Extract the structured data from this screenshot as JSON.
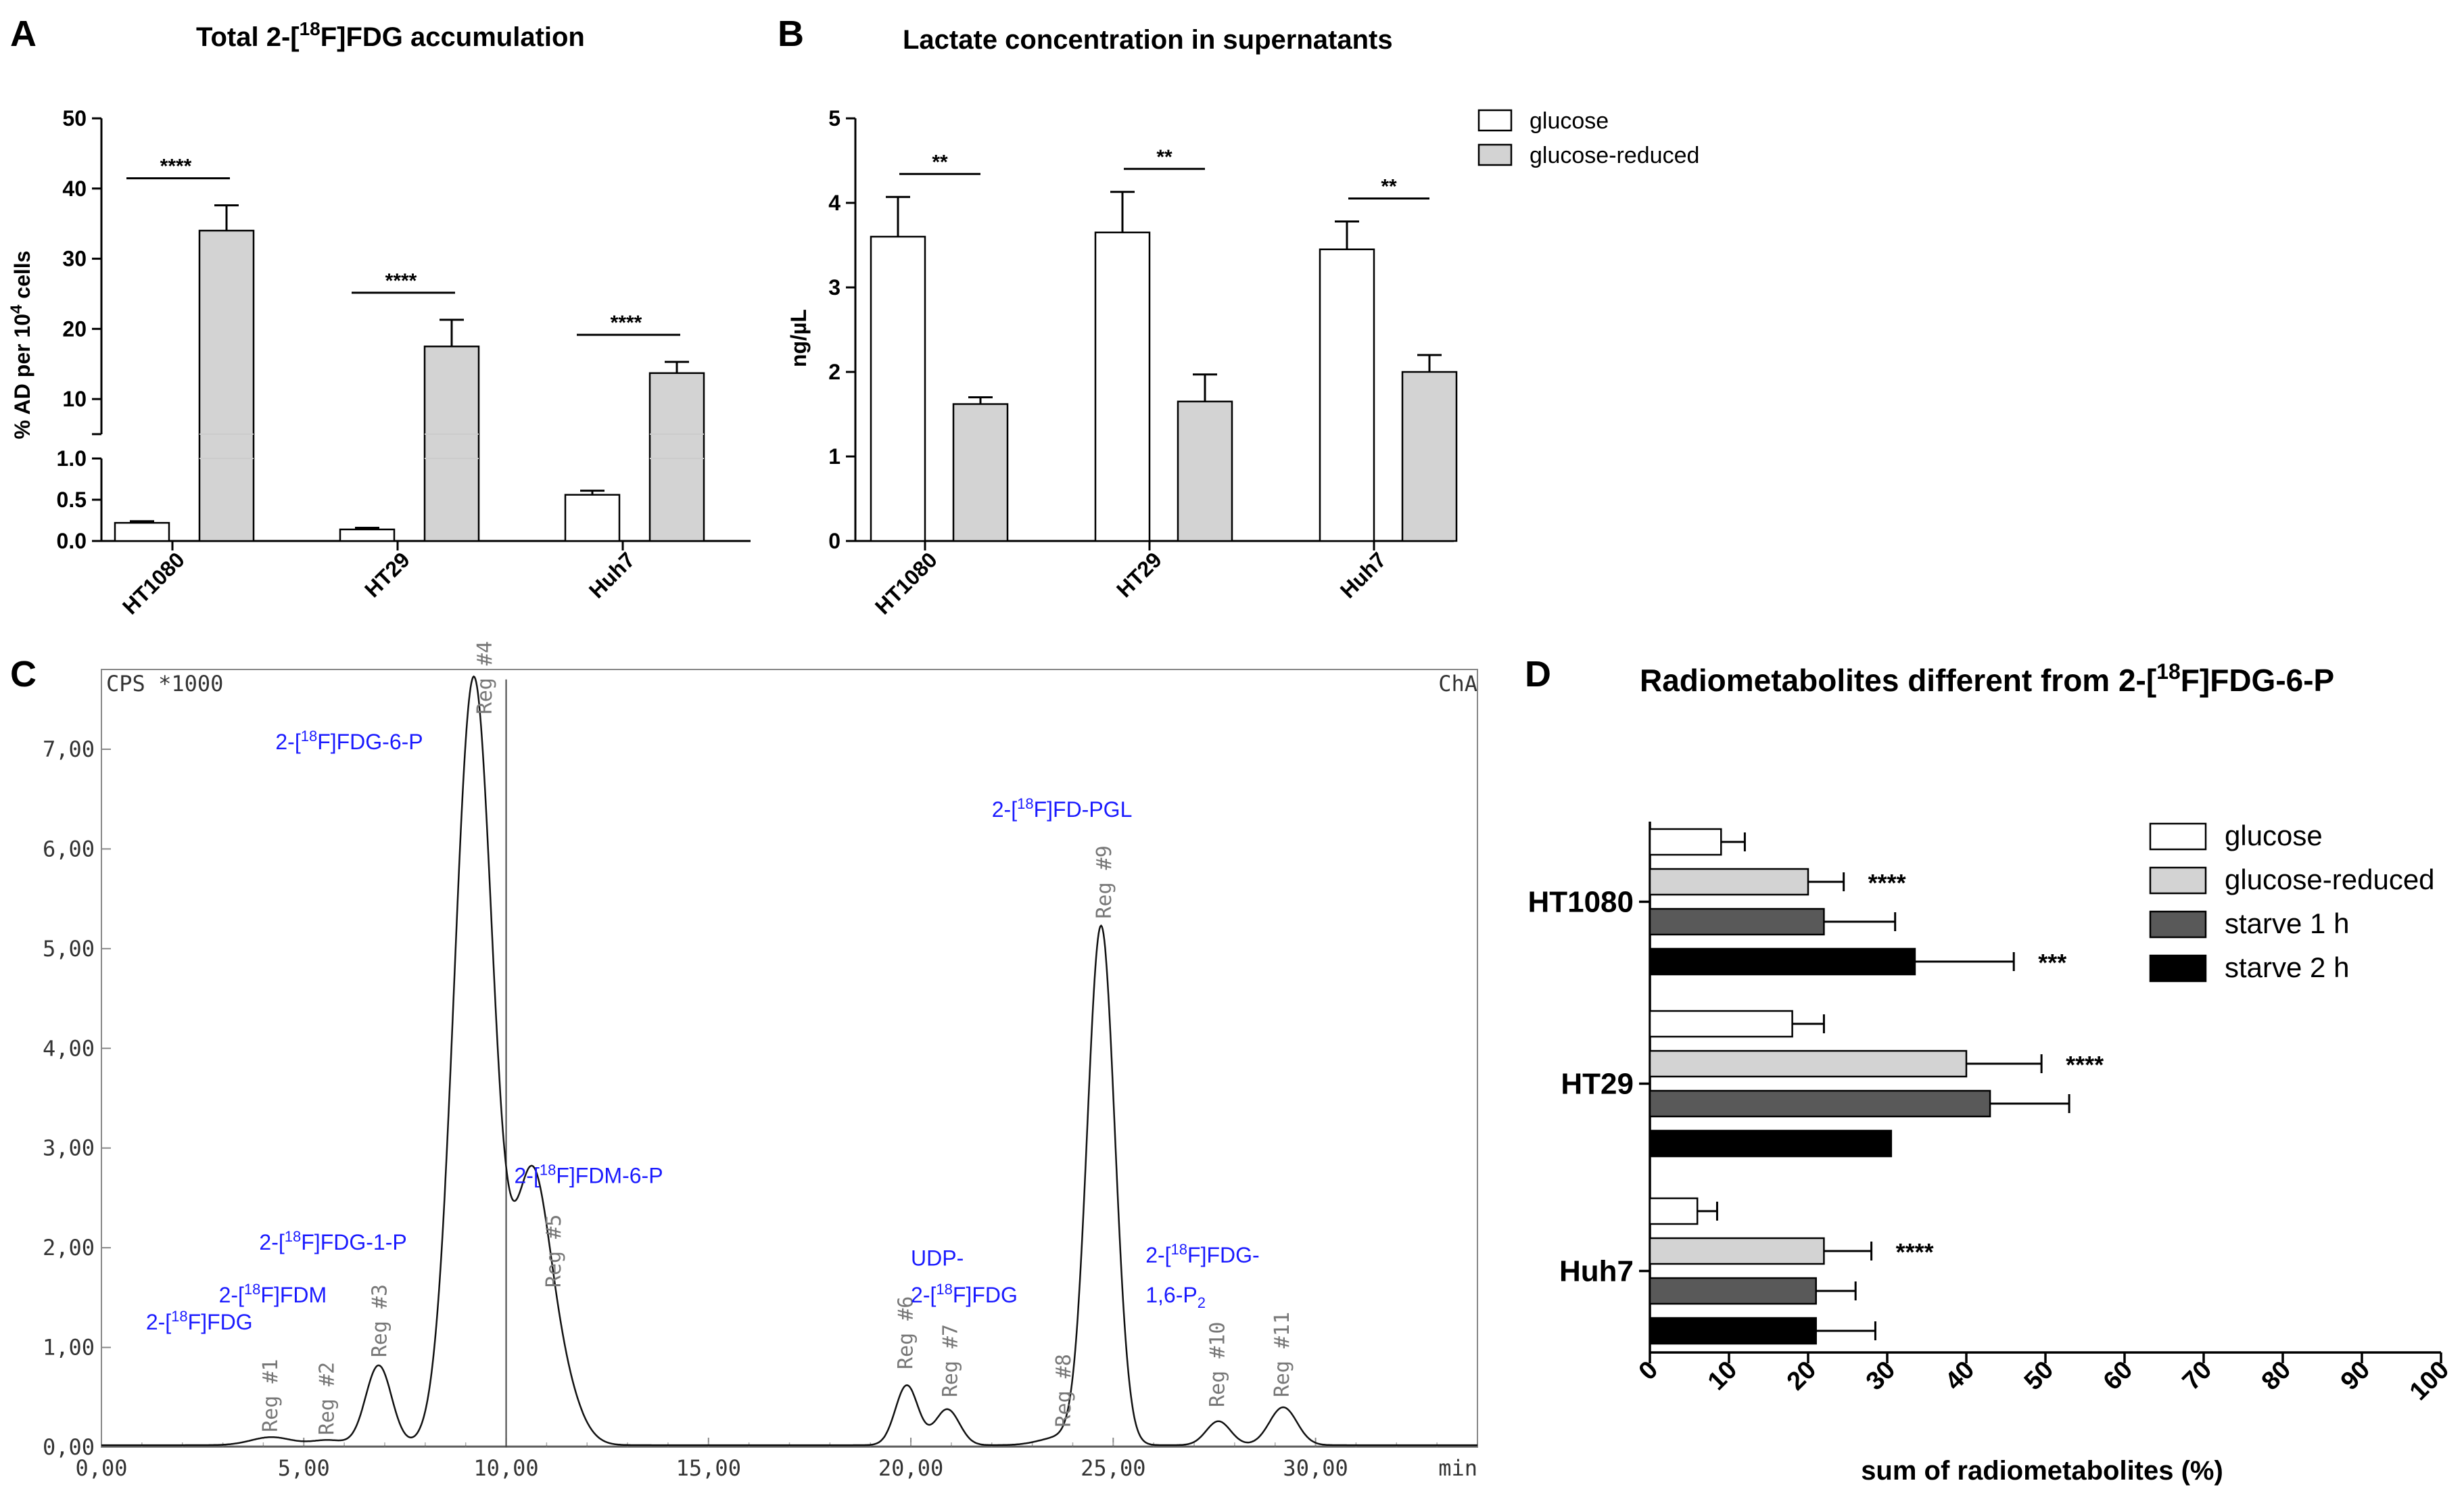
{
  "chart_data": [
    {
      "panel": "A",
      "type": "bar",
      "title_pre": "Total 2-[",
      "title_sup": "18",
      "title_post": "F]FDG accumulation",
      "ylabel_pre": "% AD per 10",
      "ylabel_sup": "4",
      "ylabel_post": " cells",
      "categories": [
        "HT1080",
        "HT29",
        "Huh7"
      ],
      "series": [
        {
          "name": "glucose",
          "values": [
            0.22,
            0.14,
            0.56
          ],
          "errors": [
            0.02,
            0.02,
            0.05
          ]
        },
        {
          "name": "glucose-reduced",
          "values": [
            34,
            17.5,
            13.7
          ],
          "errors": [
            3.6,
            3.8,
            1.6
          ]
        }
      ],
      "significance": [
        "****",
        "****",
        "****"
      ],
      "axis_lower": {
        "ylim": [
          0,
          1.0
        ],
        "ticks": [
          "0.0",
          "0.5",
          "1.0"
        ]
      },
      "axis_upper": {
        "ylim": [
          5,
          50
        ],
        "ticks": [
          "10",
          "20",
          "30",
          "40",
          "50"
        ]
      }
    },
    {
      "panel": "B",
      "type": "bar",
      "title": "Lactate concentration in supernatants",
      "ylabel": "ng/µL",
      "categories": [
        "HT1080",
        "HT29",
        "Huh7"
      ],
      "series": [
        {
          "name": "glucose",
          "values": [
            3.6,
            3.65,
            3.45
          ],
          "errors": [
            0.47,
            0.48,
            0.33
          ]
        },
        {
          "name": "glucose-reduced",
          "values": [
            1.62,
            1.65,
            2.0
          ],
          "errors": [
            0.08,
            0.32,
            0.2
          ]
        }
      ],
      "significance": [
        "**",
        "**",
        "**"
      ],
      "ylim": [
        0,
        5
      ],
      "yticks": [
        "0",
        "1",
        "2",
        "3",
        "4",
        "5"
      ],
      "legend": [
        "glucose",
        "glucose-reduced"
      ]
    },
    {
      "panel": "C",
      "type": "line",
      "ylabel": "CPS *1000",
      "channel": "ChA",
      "xlabel": "min",
      "xlim": [
        0,
        34
      ],
      "ylim": [
        0,
        7.8
      ],
      "xticks": [
        "0,00",
        "5,00",
        "10,00",
        "15,00",
        "20,00",
        "25,00",
        "30,00"
      ],
      "yticks": [
        "0,00",
        "1,00",
        "2,00",
        "3,00",
        "4,00",
        "5,00",
        "6,00",
        "7,00"
      ],
      "peaks": [
        {
          "x": 4.2,
          "h": 0.08,
          "w": 0.5
        },
        {
          "x": 5.6,
          "h": 0.05,
          "w": 0.4
        },
        {
          "x": 6.85,
          "h": 0.8,
          "w": 0.32
        },
        {
          "x": 9.2,
          "h": 7.7,
          "w": 0.48
        },
        {
          "x": 10.6,
          "h": 2.3,
          "w": 0.42
        },
        {
          "x": 11.2,
          "h": 0.8,
          "w": 0.5
        },
        {
          "x": 19.9,
          "h": 0.6,
          "w": 0.28
        },
        {
          "x": 20.9,
          "h": 0.36,
          "w": 0.3
        },
        {
          "x": 23.7,
          "h": 0.08,
          "w": 0.5
        },
        {
          "x": 24.7,
          "h": 5.2,
          "w": 0.34
        },
        {
          "x": 27.6,
          "h": 0.24,
          "w": 0.3
        },
        {
          "x": 29.2,
          "h": 0.38,
          "w": 0.34
        }
      ],
      "regions": [
        {
          "label": "Reg #1",
          "x": 4.2,
          "y": 0.15
        },
        {
          "label": "Reg #2",
          "x": 5.6,
          "y": 0.12
        },
        {
          "label": "Reg #3",
          "x": 6.9,
          "y": 0.9
        },
        {
          "label": "Reg #4",
          "x": 9.5,
          "y": 7.35
        },
        {
          "label": "Reg #5",
          "x": 11.2,
          "y": 1.6
        },
        {
          "label": "Reg #6",
          "x": 19.9,
          "y": 0.78
        },
        {
          "label": "Reg #7",
          "x": 21.0,
          "y": 0.5
        },
        {
          "label": "Reg #8",
          "x": 23.8,
          "y": 0.2
        },
        {
          "label": "Reg #9",
          "x": 24.8,
          "y": 5.3
        },
        {
          "label": "Reg #10",
          "x": 27.6,
          "y": 0.4
        },
        {
          "label": "Reg #11",
          "x": 29.2,
          "y": 0.5
        }
      ],
      "annotations": [
        {
          "pre": "2-[",
          "sup": "18",
          "post": "F]FDG",
          "x": 1.1,
          "y": 1.18
        },
        {
          "pre": "2-[",
          "sup": "18",
          "post": "F]FDM",
          "x": 2.9,
          "y": 1.45
        },
        {
          "pre": "2-[",
          "sup": "18",
          "post": "F]FDG-1-P",
          "x": 3.9,
          "y": 1.98
        },
        {
          "pre": "2-[",
          "sup": "18",
          "post": "F]FDG-6-P",
          "x": 4.3,
          "y": 7.0
        },
        {
          "pre": "2-[",
          "sup": "18",
          "post": "F]FDM-6-P",
          "x": 10.2,
          "y": 2.65
        },
        {
          "pre": "UDP-",
          "sup": "",
          "post": "",
          "x": 20.0,
          "y": 1.82
        },
        {
          "pre": "2-[",
          "sup": "18",
          "post": "F]FDG",
          "x": 20.0,
          "y": 1.45
        },
        {
          "pre": "2-[",
          "sup": "18",
          "post": "F]FD-PGL",
          "x": 22.0,
          "y": 6.32
        },
        {
          "pre": "2-[",
          "sup": "18",
          "post": "F]FDG-",
          "x": 25.8,
          "y": 1.85
        },
        {
          "pre": "1,6-P",
          "sub": "2",
          "post": "",
          "x": 25.8,
          "y": 1.45
        }
      ]
    },
    {
      "panel": "D",
      "type": "bar",
      "orientation": "horizontal",
      "title_pre": "Radiometabolites different from 2-[",
      "title_sup": "18",
      "title_post": "F]FDG-6-P",
      "xlabel": "sum of radiometabolites (%)",
      "xlim": [
        0,
        100
      ],
      "xticks": [
        "0",
        "10",
        "20",
        "30",
        "40",
        "50",
        "60",
        "70",
        "80",
        "90",
        "100"
      ],
      "categories": [
        "HT1080",
        "HT29",
        "Huh7"
      ],
      "series": [
        {
          "name": "glucose",
          "values": [
            9,
            18,
            6
          ],
          "errors": [
            3,
            4,
            2.5
          ]
        },
        {
          "name": "glucose-reduced",
          "values": [
            20,
            40,
            22
          ],
          "errors": [
            4.5,
            9.5,
            6
          ]
        },
        {
          "name": "starve 1 h",
          "values": [
            22,
            43,
            21
          ],
          "errors": [
            9,
            10,
            5
          ]
        },
        {
          "name": "starve 2 h",
          "values": [
            33.5,
            30.5,
            21
          ],
          "errors": [
            12.5,
            0,
            7.5
          ]
        }
      ],
      "significance": [
        [
          "",
          "****",
          "",
          "***"
        ],
        [
          "",
          "****",
          "",
          ""
        ],
        [
          "",
          "****",
          "",
          ""
        ]
      ],
      "legend": [
        "glucose",
        "glucose-reduced",
        "starve 1 h",
        "starve 2 h"
      ]
    }
  ],
  "colors": {
    "glucose": "#ffffff",
    "glucose_reduced": "#d3d3d3",
    "starve_1h": "#595959",
    "starve_2h": "#000000",
    "annotation": "#1a1aff",
    "region_label": "#777777",
    "trace": "#111111"
  }
}
